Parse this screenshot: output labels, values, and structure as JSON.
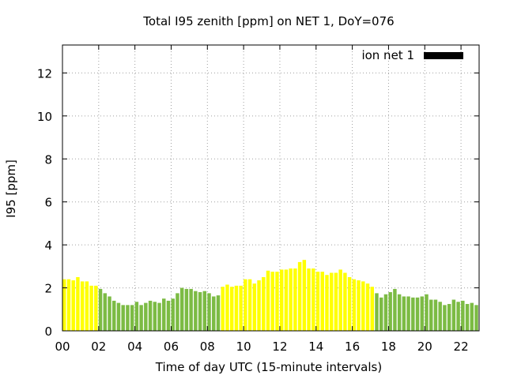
{
  "chart_data": {
    "type": "bar",
    "title": "Total I95 zenith [ppm] on NET 1, DoY=076",
    "xlabel": "Time of day UTC (15-minute intervals)",
    "ylabel": "I95 [ppm]",
    "xlim": [
      0,
      23
    ],
    "ylim": [
      0,
      13.3
    ],
    "xticks": [
      "00",
      "02",
      "04",
      "06",
      "08",
      "10",
      "12",
      "14",
      "16",
      "18",
      "20",
      "22"
    ],
    "yticks": [
      "0",
      "2",
      "4",
      "6",
      "8",
      "10",
      "12"
    ],
    "grid": true,
    "legend": {
      "position": "top-right",
      "label": "ion net 1",
      "swatch_color": "#000000"
    },
    "bar_colors": {
      "yellow": "#ffff00",
      "green": "#7cbb44"
    },
    "bars": [
      {
        "t": 0.0,
        "v": 2.4,
        "c": "yellow"
      },
      {
        "t": 0.25,
        "v": 2.4,
        "c": "yellow"
      },
      {
        "t": 0.5,
        "v": 2.35,
        "c": "yellow"
      },
      {
        "t": 0.75,
        "v": 2.5,
        "c": "yellow"
      },
      {
        "t": 1.0,
        "v": 2.3,
        "c": "yellow"
      },
      {
        "t": 1.25,
        "v": 2.3,
        "c": "yellow"
      },
      {
        "t": 1.5,
        "v": 2.1,
        "c": "yellow"
      },
      {
        "t": 1.75,
        "v": 2.1,
        "c": "yellow"
      },
      {
        "t": 2.0,
        "v": 1.95,
        "c": "green"
      },
      {
        "t": 2.25,
        "v": 1.75,
        "c": "green"
      },
      {
        "t": 2.5,
        "v": 1.6,
        "c": "green"
      },
      {
        "t": 2.75,
        "v": 1.4,
        "c": "green"
      },
      {
        "t": 3.0,
        "v": 1.3,
        "c": "green"
      },
      {
        "t": 3.25,
        "v": 1.2,
        "c": "green"
      },
      {
        "t": 3.5,
        "v": 1.2,
        "c": "green"
      },
      {
        "t": 3.75,
        "v": 1.2,
        "c": "green"
      },
      {
        "t": 4.0,
        "v": 1.35,
        "c": "green"
      },
      {
        "t": 4.25,
        "v": 1.2,
        "c": "green"
      },
      {
        "t": 4.5,
        "v": 1.3,
        "c": "green"
      },
      {
        "t": 4.75,
        "v": 1.4,
        "c": "green"
      },
      {
        "t": 5.0,
        "v": 1.35,
        "c": "green"
      },
      {
        "t": 5.25,
        "v": 1.3,
        "c": "green"
      },
      {
        "t": 5.5,
        "v": 1.5,
        "c": "green"
      },
      {
        "t": 5.75,
        "v": 1.4,
        "c": "green"
      },
      {
        "t": 6.0,
        "v": 1.5,
        "c": "green"
      },
      {
        "t": 6.25,
        "v": 1.75,
        "c": "green"
      },
      {
        "t": 6.5,
        "v": 2.0,
        "c": "green"
      },
      {
        "t": 6.75,
        "v": 1.95,
        "c": "green"
      },
      {
        "t": 7.0,
        "v": 1.95,
        "c": "green"
      },
      {
        "t": 7.25,
        "v": 1.85,
        "c": "green"
      },
      {
        "t": 7.5,
        "v": 1.8,
        "c": "green"
      },
      {
        "t": 7.75,
        "v": 1.85,
        "c": "green"
      },
      {
        "t": 8.0,
        "v": 1.75,
        "c": "green"
      },
      {
        "t": 8.25,
        "v": 1.6,
        "c": "green"
      },
      {
        "t": 8.5,
        "v": 1.65,
        "c": "green"
      },
      {
        "t": 8.75,
        "v": 2.05,
        "c": "yellow"
      },
      {
        "t": 9.0,
        "v": 2.15,
        "c": "yellow"
      },
      {
        "t": 9.25,
        "v": 2.05,
        "c": "yellow"
      },
      {
        "t": 9.5,
        "v": 2.1,
        "c": "yellow"
      },
      {
        "t": 9.75,
        "v": 2.1,
        "c": "yellow"
      },
      {
        "t": 10.0,
        "v": 2.4,
        "c": "yellow"
      },
      {
        "t": 10.25,
        "v": 2.4,
        "c": "yellow"
      },
      {
        "t": 10.5,
        "v": 2.2,
        "c": "yellow"
      },
      {
        "t": 10.75,
        "v": 2.35,
        "c": "yellow"
      },
      {
        "t": 11.0,
        "v": 2.5,
        "c": "yellow"
      },
      {
        "t": 11.25,
        "v": 2.8,
        "c": "yellow"
      },
      {
        "t": 11.5,
        "v": 2.75,
        "c": "yellow"
      },
      {
        "t": 11.75,
        "v": 2.75,
        "c": "yellow"
      },
      {
        "t": 12.0,
        "v": 2.85,
        "c": "yellow"
      },
      {
        "t": 12.25,
        "v": 2.85,
        "c": "yellow"
      },
      {
        "t": 12.5,
        "v": 2.9,
        "c": "yellow"
      },
      {
        "t": 12.75,
        "v": 2.9,
        "c": "yellow"
      },
      {
        "t": 13.0,
        "v": 3.2,
        "c": "yellow"
      },
      {
        "t": 13.25,
        "v": 3.3,
        "c": "yellow"
      },
      {
        "t": 13.5,
        "v": 2.9,
        "c": "yellow"
      },
      {
        "t": 13.75,
        "v": 2.9,
        "c": "yellow"
      },
      {
        "t": 14.0,
        "v": 2.75,
        "c": "yellow"
      },
      {
        "t": 14.25,
        "v": 2.75,
        "c": "yellow"
      },
      {
        "t": 14.5,
        "v": 2.6,
        "c": "yellow"
      },
      {
        "t": 14.75,
        "v": 2.7,
        "c": "yellow"
      },
      {
        "t": 15.0,
        "v": 2.7,
        "c": "yellow"
      },
      {
        "t": 15.25,
        "v": 2.85,
        "c": "yellow"
      },
      {
        "t": 15.5,
        "v": 2.7,
        "c": "yellow"
      },
      {
        "t": 15.75,
        "v": 2.5,
        "c": "yellow"
      },
      {
        "t": 16.0,
        "v": 2.4,
        "c": "yellow"
      },
      {
        "t": 16.25,
        "v": 2.35,
        "c": "yellow"
      },
      {
        "t": 16.5,
        "v": 2.3,
        "c": "yellow"
      },
      {
        "t": 16.75,
        "v": 2.2,
        "c": "yellow"
      },
      {
        "t": 17.0,
        "v": 2.05,
        "c": "yellow"
      },
      {
        "t": 17.25,
        "v": 1.75,
        "c": "green"
      },
      {
        "t": 17.5,
        "v": 1.55,
        "c": "green"
      },
      {
        "t": 17.75,
        "v": 1.7,
        "c": "green"
      },
      {
        "t": 18.0,
        "v": 1.8,
        "c": "green"
      },
      {
        "t": 18.25,
        "v": 1.95,
        "c": "green"
      },
      {
        "t": 18.5,
        "v": 1.7,
        "c": "green"
      },
      {
        "t": 18.75,
        "v": 1.6,
        "c": "green"
      },
      {
        "t": 19.0,
        "v": 1.6,
        "c": "green"
      },
      {
        "t": 19.25,
        "v": 1.55,
        "c": "green"
      },
      {
        "t": 19.5,
        "v": 1.55,
        "c": "green"
      },
      {
        "t": 19.75,
        "v": 1.6,
        "c": "green"
      },
      {
        "t": 20.0,
        "v": 1.7,
        "c": "green"
      },
      {
        "t": 20.25,
        "v": 1.45,
        "c": "green"
      },
      {
        "t": 20.5,
        "v": 1.45,
        "c": "green"
      },
      {
        "t": 20.75,
        "v": 1.35,
        "c": "green"
      },
      {
        "t": 21.0,
        "v": 1.2,
        "c": "green"
      },
      {
        "t": 21.25,
        "v": 1.25,
        "c": "green"
      },
      {
        "t": 21.5,
        "v": 1.45,
        "c": "green"
      },
      {
        "t": 21.75,
        "v": 1.35,
        "c": "green"
      },
      {
        "t": 22.0,
        "v": 1.4,
        "c": "green"
      },
      {
        "t": 22.25,
        "v": 1.25,
        "c": "green"
      },
      {
        "t": 22.5,
        "v": 1.3,
        "c": "green"
      },
      {
        "t": 22.75,
        "v": 1.2,
        "c": "green"
      }
    ]
  }
}
